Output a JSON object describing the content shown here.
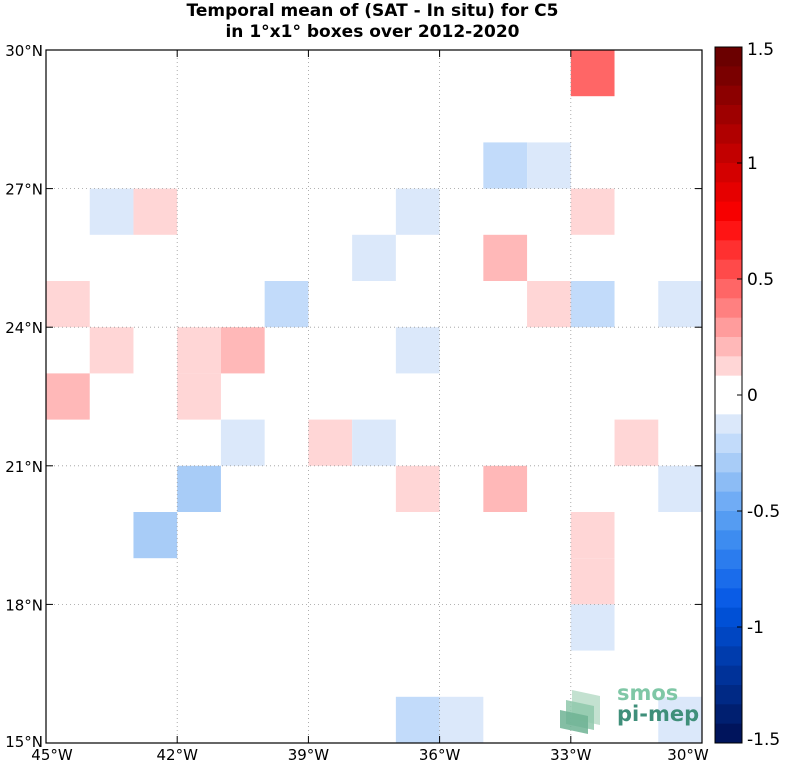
{
  "title": {
    "line1": "Temporal mean of (SAT - In situ) for C5",
    "line2": "in 1°x1° boxes over 2012-2020"
  },
  "axes": {
    "lon_range": [
      -45,
      -30
    ],
    "lat_range": [
      15,
      30
    ],
    "x_ticks": [
      {
        "value": -45,
        "label": "45°W"
      },
      {
        "value": -42,
        "label": "42°W"
      },
      {
        "value": -39,
        "label": "39°W"
      },
      {
        "value": -36,
        "label": "36°W"
      },
      {
        "value": -33,
        "label": "33°W"
      },
      {
        "value": -30,
        "label": "30°W"
      }
    ],
    "y_ticks": [
      {
        "value": 15,
        "label": "15°N"
      },
      {
        "value": 18,
        "label": "18°N"
      },
      {
        "value": 21,
        "label": "21°N"
      },
      {
        "value": 24,
        "label": "24°N"
      },
      {
        "value": 27,
        "label": "27°N"
      },
      {
        "value": 30,
        "label": "30°N"
      }
    ],
    "grid": true
  },
  "colorbar": {
    "range": [
      -1.5,
      1.5
    ],
    "ticks": [
      {
        "value": 1.5,
        "label": "1.5"
      },
      {
        "value": 1,
        "label": "1"
      },
      {
        "value": 0.5,
        "label": "0.5"
      },
      {
        "value": 0,
        "label": "0"
      },
      {
        "value": -0.5,
        "label": "-0.5"
      },
      {
        "value": -1,
        "label": "-1"
      },
      {
        "value": -1.5,
        "label": "-1.5"
      }
    ],
    "colors_top_to_bottom": [
      "#6b0000",
      "#7a0000",
      "#8c0000",
      "#9e0000",
      "#b00000",
      "#c20000",
      "#d40000",
      "#e60000",
      "#f70000",
      "#ff1414",
      "#ff3030",
      "#ff4a4a",
      "#ff6666",
      "#ff8080",
      "#ff9c9c",
      "#ffb8b8",
      "#ffd6d6",
      "#ffffff",
      "#ffffff",
      "#dbe8fa",
      "#c2dbfa",
      "#a8ccf7",
      "#8cbcf5",
      "#70acf5",
      "#559cf2",
      "#3d8cf0",
      "#2b7cee",
      "#1a6ceb",
      "#0a5ce6",
      "#0050d6",
      "#0046c2",
      "#003cad",
      "#003299",
      "#002985",
      "#001f70",
      "#00145c"
    ]
  },
  "chart_data": {
    "type": "heatmap",
    "title": "Temporal mean of (SAT - In situ) for C5 in 1°x1° boxes over 2012-2020",
    "xlabel": "",
    "ylabel": "",
    "x_range": [
      -45,
      -30
    ],
    "y_range": [
      15,
      30
    ],
    "cell_size_deg": 1,
    "cells": [
      {
        "lon": -33,
        "lat": 29,
        "value": 0.6,
        "color": "#ff6666"
      },
      {
        "lon": -35,
        "lat": 27,
        "value": -0.25,
        "color": "#c2dbfa"
      },
      {
        "lon": -34,
        "lat": 27,
        "value": -0.15,
        "color": "#dbe8fa"
      },
      {
        "lon": -44,
        "lat": 26,
        "value": -0.15,
        "color": "#dbe8fa"
      },
      {
        "lon": -43,
        "lat": 26,
        "value": 0.15,
        "color": "#ffd6d6"
      },
      {
        "lon": -37,
        "lat": 26,
        "value": -0.15,
        "color": "#dbe8fa"
      },
      {
        "lon": -33,
        "lat": 26,
        "value": 0.15,
        "color": "#ffd6d6"
      },
      {
        "lon": -38,
        "lat": 25,
        "value": -0.15,
        "color": "#dbe8fa"
      },
      {
        "lon": -35,
        "lat": 25,
        "value": 0.35,
        "color": "#ffb8b8"
      },
      {
        "lon": -45,
        "lat": 24,
        "value": 0.15,
        "color": "#ffd6d6"
      },
      {
        "lon": -40,
        "lat": 24,
        "value": -0.25,
        "color": "#c2dbfa"
      },
      {
        "lon": -34,
        "lat": 24,
        "value": 0.15,
        "color": "#ffd6d6"
      },
      {
        "lon": -33,
        "lat": 24,
        "value": -0.25,
        "color": "#c2dbfa"
      },
      {
        "lon": -31,
        "lat": 24,
        "value": -0.15,
        "color": "#dbe8fa"
      },
      {
        "lon": -44,
        "lat": 23,
        "value": 0.15,
        "color": "#ffd6d6"
      },
      {
        "lon": -42,
        "lat": 23,
        "value": 0.15,
        "color": "#ffd6d6"
      },
      {
        "lon": -41,
        "lat": 23,
        "value": 0.35,
        "color": "#ffb8b8"
      },
      {
        "lon": -37,
        "lat": 23,
        "value": -0.15,
        "color": "#dbe8fa"
      },
      {
        "lon": -45,
        "lat": 22,
        "value": 0.35,
        "color": "#ffb8b8"
      },
      {
        "lon": -42,
        "lat": 22,
        "value": 0.15,
        "color": "#ffd6d6"
      },
      {
        "lon": -41,
        "lat": 21,
        "value": -0.15,
        "color": "#dbe8fa"
      },
      {
        "lon": -39,
        "lat": 21,
        "value": 0.15,
        "color": "#ffd6d6"
      },
      {
        "lon": -38,
        "lat": 21,
        "value": -0.15,
        "color": "#dbe8fa"
      },
      {
        "lon": -32,
        "lat": 21,
        "value": 0.15,
        "color": "#ffd6d6"
      },
      {
        "lon": -42,
        "lat": 20,
        "value": -0.35,
        "color": "#a8ccf7"
      },
      {
        "lon": -37,
        "lat": 20,
        "value": 0.15,
        "color": "#ffd6d6"
      },
      {
        "lon": -35,
        "lat": 20,
        "value": 0.35,
        "color": "#ffb8b8"
      },
      {
        "lon": -31,
        "lat": 20,
        "value": -0.15,
        "color": "#dbe8fa"
      },
      {
        "lon": -43,
        "lat": 19,
        "value": -0.35,
        "color": "#a8ccf7"
      },
      {
        "lon": -33,
        "lat": 19,
        "value": 0.15,
        "color": "#ffd6d6"
      },
      {
        "lon": -33,
        "lat": 18,
        "value": 0.15,
        "color": "#ffd6d6"
      },
      {
        "lon": -33,
        "lat": 17,
        "value": -0.15,
        "color": "#dbe8fa"
      },
      {
        "lon": -37,
        "lat": 15,
        "value": -0.25,
        "color": "#c2dbfa"
      },
      {
        "lon": -36,
        "lat": 15,
        "value": -0.15,
        "color": "#dbe8fa"
      },
      {
        "lon": -31,
        "lat": 15,
        "value": -0.15,
        "color": "#dbe8fa"
      }
    ]
  },
  "logo": {
    "line1": "smos",
    "line2": "pi-mep",
    "color1": "#7fc7a6",
    "color2": "#3f8f7a"
  }
}
